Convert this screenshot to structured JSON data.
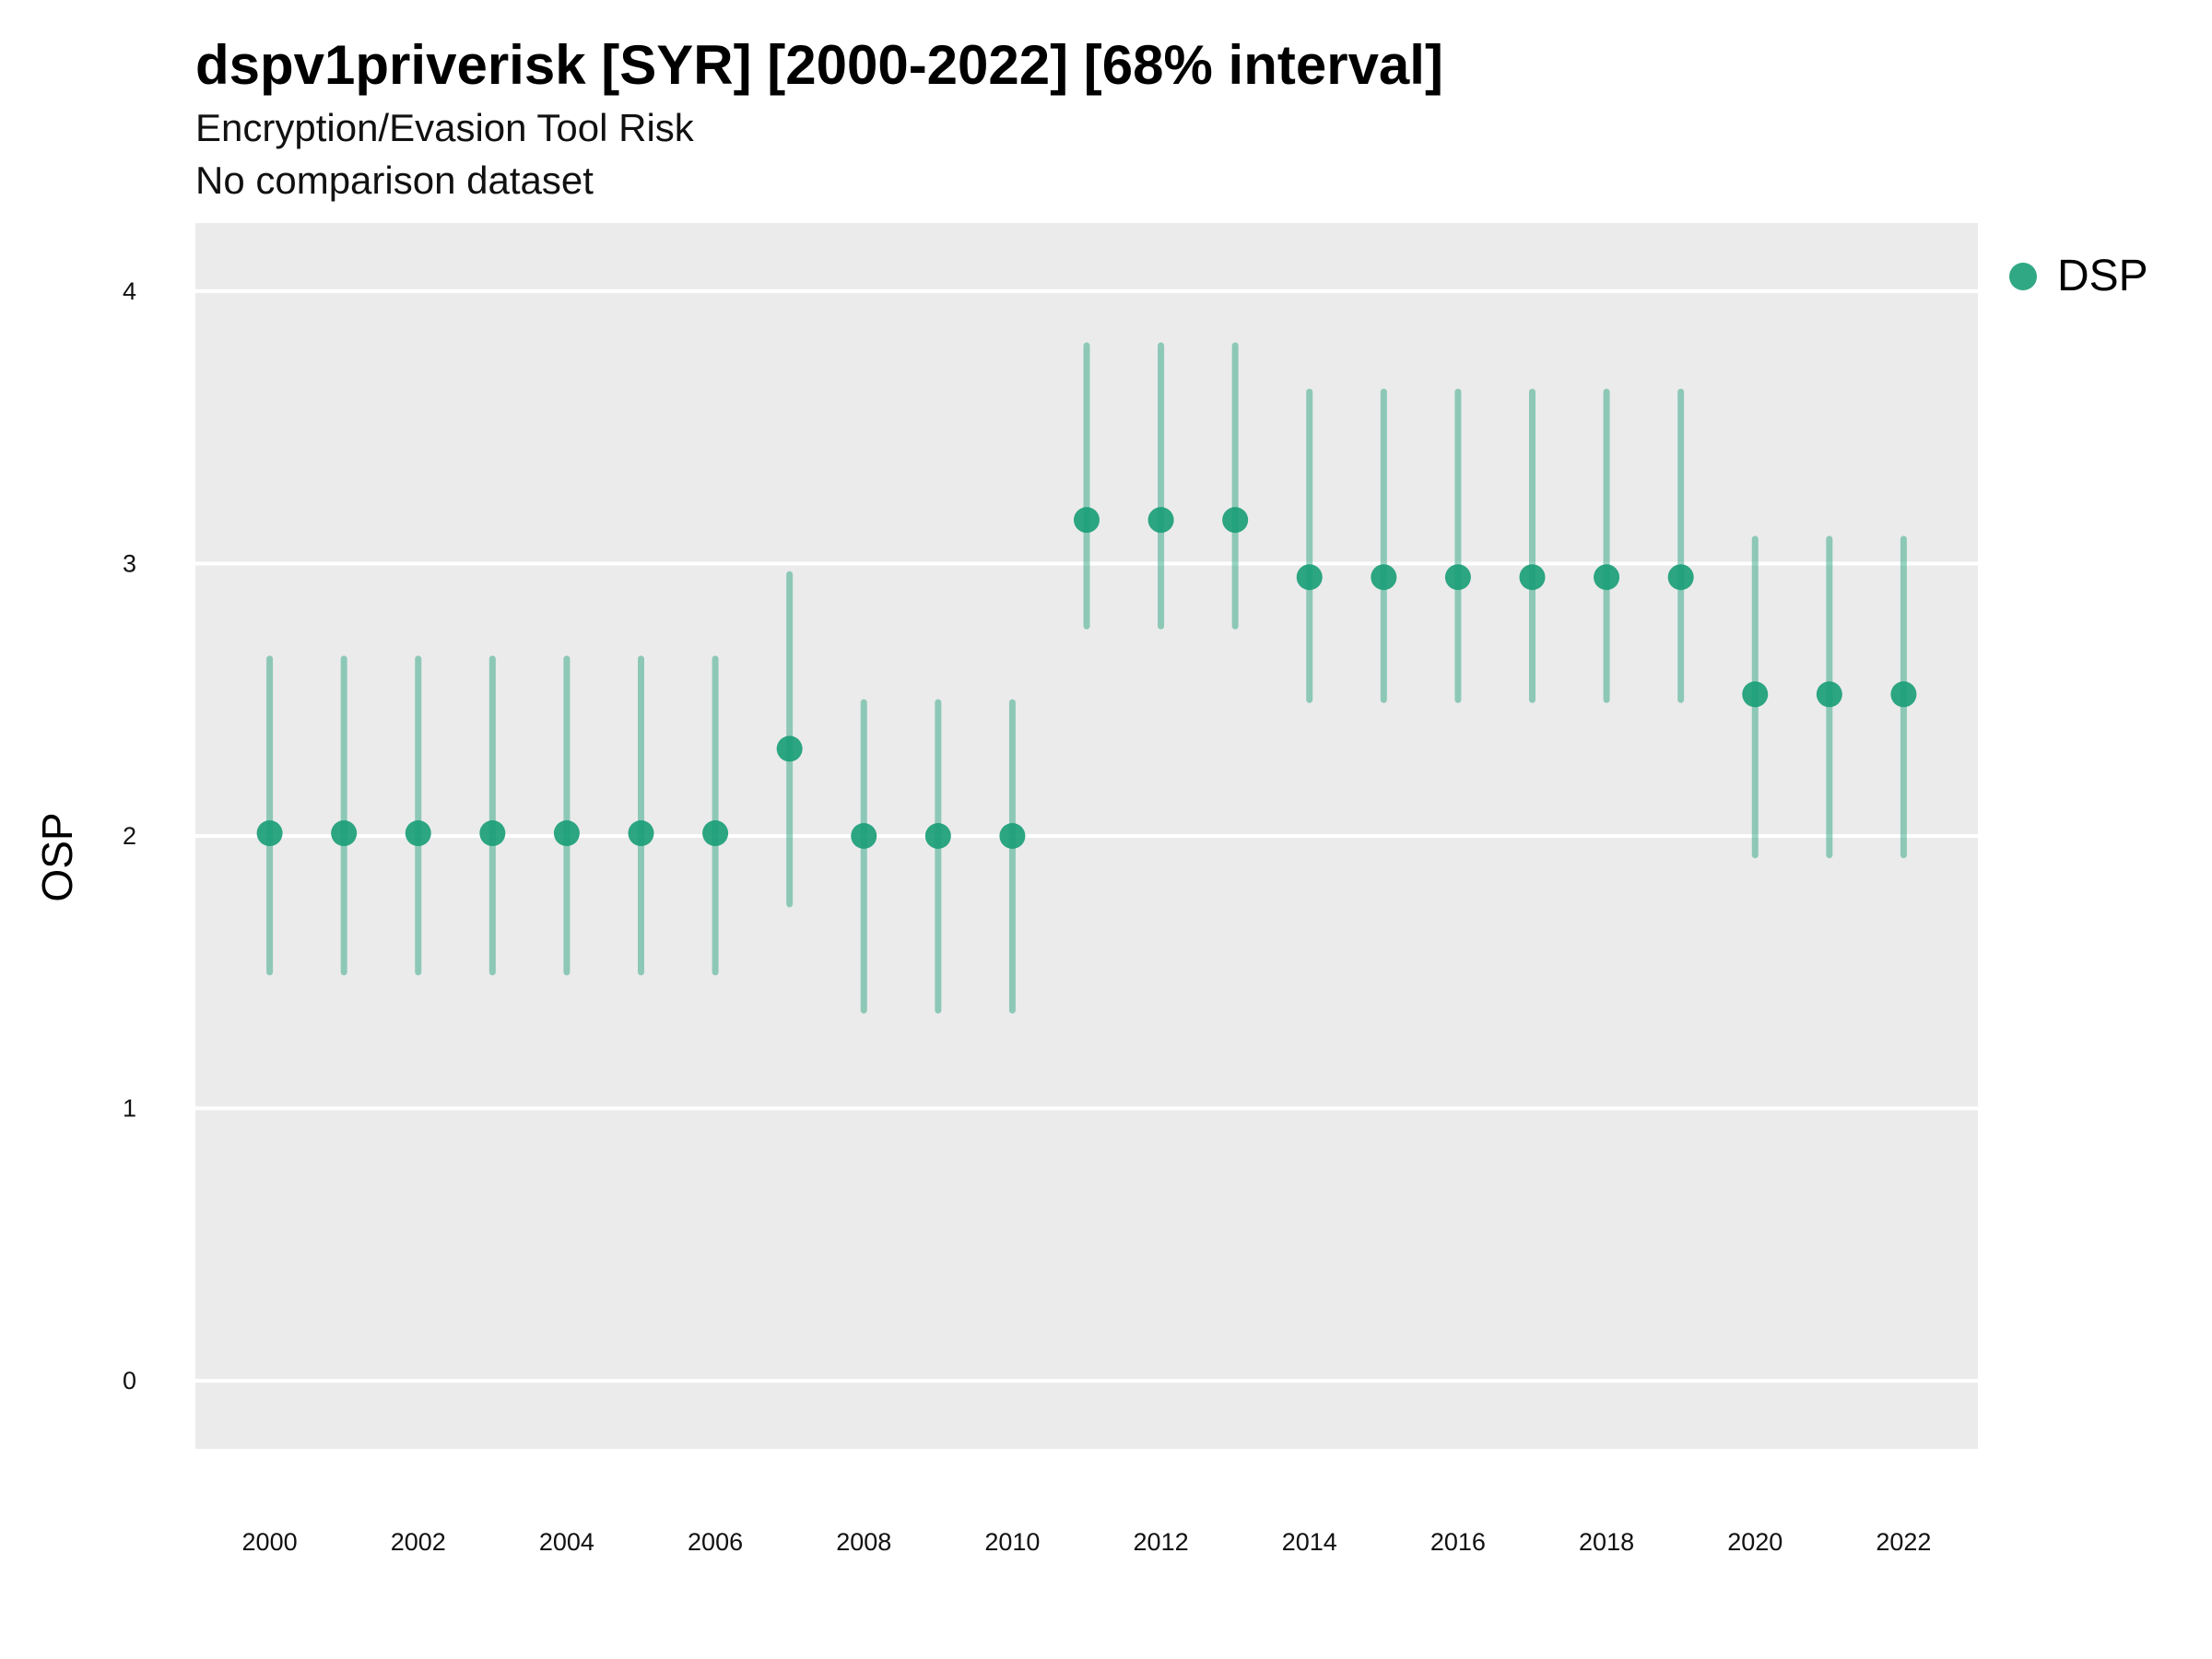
{
  "chart_data": {
    "type": "scatter",
    "title": "dspv1priverisk [SYR] [2000-2022] [68% interval]",
    "subtitle_lines": [
      "Encryption/Evasion Tool Risk",
      "No comparison dataset"
    ],
    "ylabel": "OSP",
    "xlabel": "",
    "ylim": [
      -0.25,
      4.25
    ],
    "y_ticks": [
      0,
      1,
      2,
      3,
      4
    ],
    "x_ticks": [
      2000,
      2002,
      2004,
      2006,
      2008,
      2010,
      2012,
      2014,
      2016,
      2018,
      2020,
      2022
    ],
    "xlim": [
      1999,
      2023
    ],
    "grid": true,
    "legend_position": "right",
    "series": [
      {
        "name": "DSP",
        "color": "#1b9e77",
        "x": [
          2000,
          2001,
          2002,
          2003,
          2004,
          2005,
          2006,
          2007,
          2008,
          2009,
          2010,
          2011,
          2012,
          2013,
          2014,
          2015,
          2016,
          2017,
          2018,
          2019,
          2020,
          2021,
          2022
        ],
        "y": [
          2.01,
          2.01,
          2.01,
          2.01,
          2.01,
          2.01,
          2.01,
          2.32,
          2.0,
          2.0,
          2.0,
          3.16,
          3.16,
          3.16,
          2.95,
          2.95,
          2.95,
          2.95,
          2.95,
          2.95,
          2.52,
          2.52,
          2.52
        ],
        "lower": [
          1.5,
          1.5,
          1.5,
          1.5,
          1.5,
          1.5,
          1.5,
          1.75,
          1.36,
          1.36,
          1.36,
          2.77,
          2.77,
          2.77,
          2.5,
          2.5,
          2.5,
          2.5,
          2.5,
          2.5,
          1.93,
          1.93,
          1.93
        ],
        "upper": [
          2.65,
          2.65,
          2.65,
          2.65,
          2.65,
          2.65,
          2.65,
          2.96,
          2.49,
          2.49,
          2.49,
          3.8,
          3.8,
          3.8,
          3.63,
          3.63,
          3.63,
          3.63,
          3.63,
          3.63,
          3.09,
          3.09,
          3.09
        ]
      }
    ]
  }
}
